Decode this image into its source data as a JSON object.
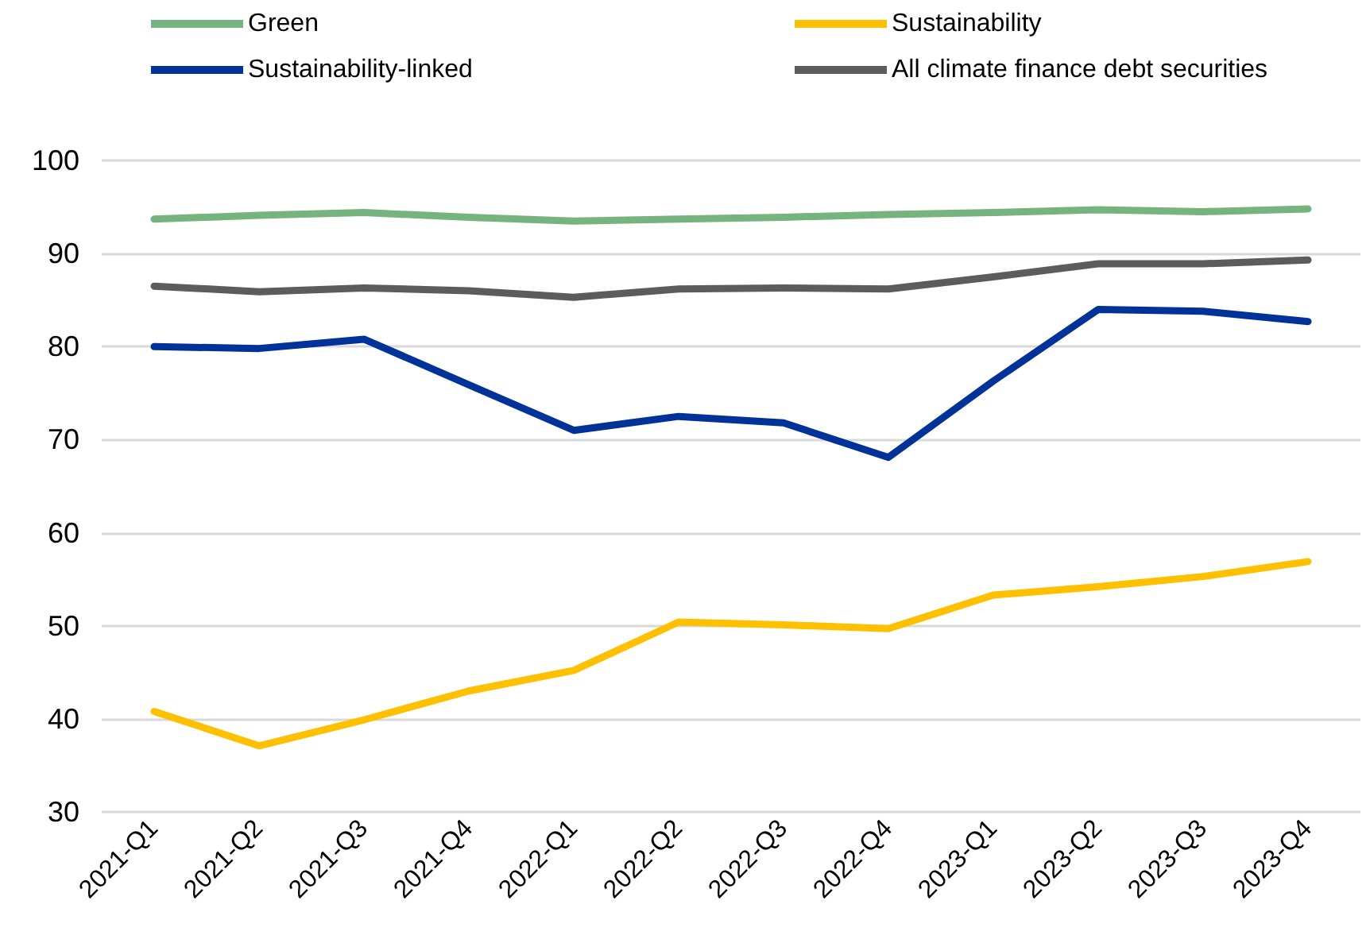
{
  "chart_data": {
    "type": "line",
    "categories": [
      "2021-Q1",
      "2021-Q2",
      "2021-Q3",
      "2021-Q4",
      "2022-Q1",
      "2022-Q2",
      "2022-Q3",
      "2022-Q4",
      "2023-Q1",
      "2023-Q2",
      "2023-Q3",
      "2023-Q4"
    ],
    "series": [
      {
        "name": "Green",
        "color": "#76b47e",
        "values": [
          93.7,
          94.1,
          94.4,
          93.9,
          93.5,
          93.7,
          93.9,
          94.2,
          94.4,
          94.7,
          94.5,
          94.8
        ]
      },
      {
        "name": "Sustainability",
        "color": "#ffc000",
        "values": [
          40.8,
          37.1,
          39.9,
          43.0,
          45.2,
          50.4,
          50.1,
          49.7,
          53.3,
          54.2,
          55.3,
          56.9
        ]
      },
      {
        "name": "Sustainability-linked",
        "color": "#003299",
        "values": [
          80.0,
          79.8,
          80.8,
          75.9,
          71.0,
          72.5,
          71.8,
          68.1,
          76.3,
          84.0,
          83.8,
          82.7
        ]
      },
      {
        "name": "All climate finance debt securities",
        "color": "#5c5c5c",
        "values": [
          86.5,
          85.9,
          86.3,
          86.0,
          85.3,
          86.2,
          86.3,
          86.2,
          87.5,
          88.9,
          88.9,
          89.3
        ]
      }
    ],
    "ylim": [
      30,
      100
    ],
    "yticks": [
      30,
      40,
      50,
      60,
      70,
      80,
      90,
      100
    ],
    "grid": "y",
    "legend": "top",
    "marker": "none",
    "line_style": "solid"
  }
}
